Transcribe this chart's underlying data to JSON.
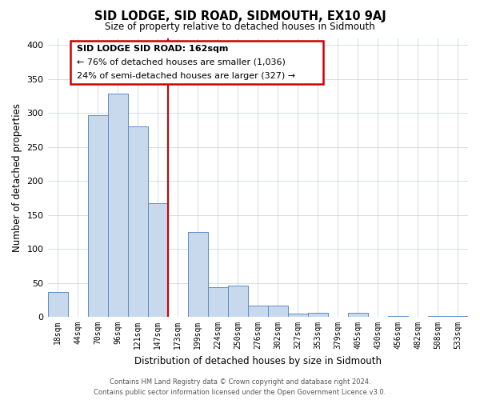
{
  "title": "SID LODGE, SID ROAD, SIDMOUTH, EX10 9AJ",
  "subtitle": "Size of property relative to detached houses in Sidmouth",
  "xlabel": "Distribution of detached houses by size in Sidmouth",
  "ylabel": "Number of detached properties",
  "bar_labels": [
    "18sqm",
    "44sqm",
    "70sqm",
    "96sqm",
    "121sqm",
    "147sqm",
    "173sqm",
    "199sqm",
    "224sqm",
    "250sqm",
    "276sqm",
    "302sqm",
    "327sqm",
    "353sqm",
    "379sqm",
    "405sqm",
    "430sqm",
    "456sqm",
    "482sqm",
    "508sqm",
    "533sqm"
  ],
  "bar_values": [
    37,
    0,
    297,
    328,
    280,
    167,
    0,
    125,
    43,
    46,
    16,
    17,
    5,
    6,
    0,
    6,
    0,
    1,
    0,
    1,
    1
  ],
  "bar_color": "#c8d9ed",
  "bar_edge_color": "#5b8fc9",
  "vline_color": "#cc0000",
  "ylim": [
    0,
    410
  ],
  "yticks": [
    0,
    50,
    100,
    150,
    200,
    250,
    300,
    350,
    400
  ],
  "annotation_title": "SID LODGE SID ROAD: 162sqm",
  "annotation_line1": "← 76% of detached houses are smaller (1,036)",
  "annotation_line2": "24% of semi-detached houses are larger (327) →",
  "annotation_box_color": "#cc0000",
  "footer_line1": "Contains HM Land Registry data © Crown copyright and database right 2024.",
  "footer_line2": "Contains public sector information licensed under the Open Government Licence v3.0.",
  "bg_color": "#ffffff",
  "grid_color": "#d0d8e4"
}
